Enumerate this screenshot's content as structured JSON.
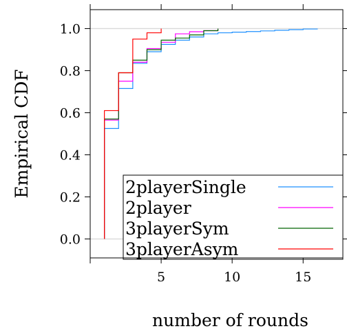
{
  "chart_data": {
    "type": "line",
    "title": "",
    "xlabel": "number of rounds",
    "ylabel": "Empirical CDF",
    "xlim": [
      0,
      17.8
    ],
    "ylim": [
      -0.09,
      1.09
    ],
    "xticks": [
      5,
      10,
      15
    ],
    "xtick_labels": [
      "5",
      "10",
      "15"
    ],
    "yticks": [
      0.0,
      0.2,
      0.4,
      0.6,
      0.8,
      1.0
    ],
    "ytick_labels": [
      "0.0",
      "0.2",
      "0.4",
      "0.6",
      "0.8",
      "1.0"
    ],
    "reference_lines": [
      0,
      1
    ],
    "legend_position": "bottom-right",
    "series": [
      {
        "name": "2playerSingle",
        "color": "#1e90ff",
        "x": [
          1,
          2,
          3,
          4,
          5,
          6,
          7,
          8,
          9,
          10,
          11,
          12,
          13,
          14,
          15,
          16
        ],
        "y": [
          0.525,
          0.715,
          0.835,
          0.89,
          0.925,
          0.945,
          0.96,
          0.975,
          0.98,
          0.983,
          0.986,
          0.989,
          0.992,
          0.995,
          0.998,
          1.0
        ]
      },
      {
        "name": "2player",
        "color": "#ff00ff",
        "x": [
          1,
          2,
          3,
          4,
          5,
          6,
          7,
          8,
          9
        ],
        "y": [
          0.565,
          0.75,
          0.84,
          0.905,
          0.935,
          0.975,
          0.985,
          0.99,
          1.0
        ]
      },
      {
        "name": "3playerSym",
        "color": "#006400",
        "x": [
          1,
          2,
          3,
          4,
          5,
          6,
          7,
          8,
          9
        ],
        "y": [
          0.57,
          0.79,
          0.85,
          0.9,
          0.945,
          0.955,
          0.97,
          0.99,
          1.0
        ]
      },
      {
        "name": "3playerAsym",
        "color": "#ff0000",
        "x": [
          1,
          2,
          3,
          4,
          5
        ],
        "y": [
          0.61,
          0.79,
          0.95,
          0.98,
          1.0
        ]
      }
    ]
  }
}
